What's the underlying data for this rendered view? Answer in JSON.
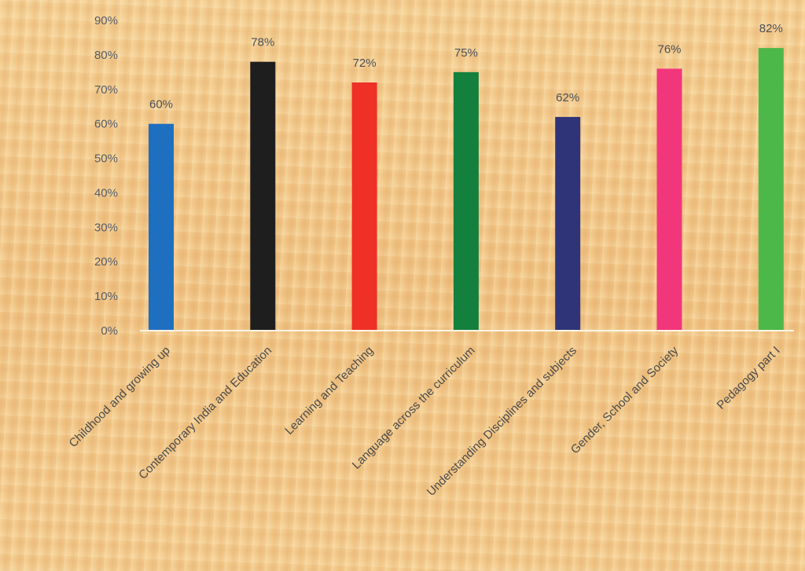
{
  "chart_data": {
    "type": "bar",
    "categories": [
      "Childhood and growing up",
      "Contemporary India and Education",
      "Learning and Teaching",
      "Language across the curriculum",
      "Understanding Disciplines and subjects",
      "Gender, School and Society",
      "Pedagogy part I"
    ],
    "values": [
      60,
      78,
      72,
      75,
      62,
      76,
      82
    ],
    "data_labels": [
      "60%",
      "78%",
      "72%",
      "75%",
      "62%",
      "76%",
      "82%"
    ],
    "colors": [
      "#1f6fc0",
      "#1e1e1e",
      "#ee3027",
      "#13803e",
      "#2f3479",
      "#f2367c",
      "#4cb84a"
    ],
    "ylim": [
      0,
      90
    ],
    "yticks": [
      0,
      10,
      20,
      30,
      40,
      50,
      60,
      70,
      80,
      90
    ],
    "ytick_labels": [
      "0%",
      "10%",
      "20%",
      "30%",
      "40%",
      "50%",
      "60%",
      "70%",
      "80%",
      "90%"
    ],
    "title": "",
    "xlabel": "",
    "ylabel": "",
    "grid": false,
    "legend": false,
    "axis_line_color": "#fff6e6"
  }
}
